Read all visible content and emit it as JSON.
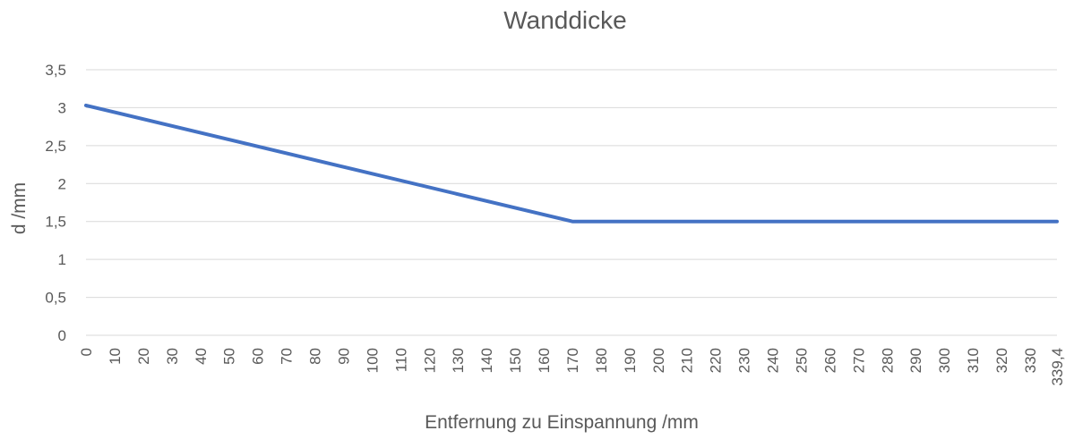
{
  "chart_data": {
    "type": "line",
    "title": "Wanddicke",
    "xlabel": "Entfernung zu Einspannung /mm",
    "ylabel": "d /mm",
    "ylim": [
      0,
      3.5
    ],
    "xlim": [
      0,
      339.4
    ],
    "grid": true,
    "legend": "none",
    "y_ticks": [
      {
        "value": 0,
        "label": "0"
      },
      {
        "value": 0.5,
        "label": "0,5"
      },
      {
        "value": 1,
        "label": "1"
      },
      {
        "value": 1.5,
        "label": "1,5"
      },
      {
        "value": 2,
        "label": "2"
      },
      {
        "value": 2.5,
        "label": "2,5"
      },
      {
        "value": 3,
        "label": "3"
      },
      {
        "value": 3.5,
        "label": "3,5"
      }
    ],
    "x_ticks": [
      {
        "value": 0,
        "label": "0"
      },
      {
        "value": 10,
        "label": "10"
      },
      {
        "value": 20,
        "label": "20"
      },
      {
        "value": 30,
        "label": "30"
      },
      {
        "value": 40,
        "label": "40"
      },
      {
        "value": 50,
        "label": "50"
      },
      {
        "value": 60,
        "label": "60"
      },
      {
        "value": 70,
        "label": "70"
      },
      {
        "value": 80,
        "label": "80"
      },
      {
        "value": 90,
        "label": "90"
      },
      {
        "value": 100,
        "label": "100"
      },
      {
        "value": 110,
        "label": "110"
      },
      {
        "value": 120,
        "label": "120"
      },
      {
        "value": 130,
        "label": "130"
      },
      {
        "value": 140,
        "label": "140"
      },
      {
        "value": 150,
        "label": "150"
      },
      {
        "value": 160,
        "label": "160"
      },
      {
        "value": 170,
        "label": "170"
      },
      {
        "value": 180,
        "label": "180"
      },
      {
        "value": 190,
        "label": "190"
      },
      {
        "value": 200,
        "label": "200"
      },
      {
        "value": 210,
        "label": "210"
      },
      {
        "value": 220,
        "label": "220"
      },
      {
        "value": 230,
        "label": "230"
      },
      {
        "value": 240,
        "label": "240"
      },
      {
        "value": 250,
        "label": "250"
      },
      {
        "value": 260,
        "label": "260"
      },
      {
        "value": 270,
        "label": "270"
      },
      {
        "value": 280,
        "label": "280"
      },
      {
        "value": 290,
        "label": "290"
      },
      {
        "value": 300,
        "label": "300"
      },
      {
        "value": 310,
        "label": "310"
      },
      {
        "value": 320,
        "label": "320"
      },
      {
        "value": 330,
        "label": "330"
      },
      {
        "value": 339.4,
        "label": "339,4"
      }
    ],
    "series": [
      {
        "color": "#4472c4",
        "x": [
          0,
          170,
          339.4
        ],
        "y": [
          3.03,
          1.5,
          1.5
        ]
      }
    ]
  }
}
